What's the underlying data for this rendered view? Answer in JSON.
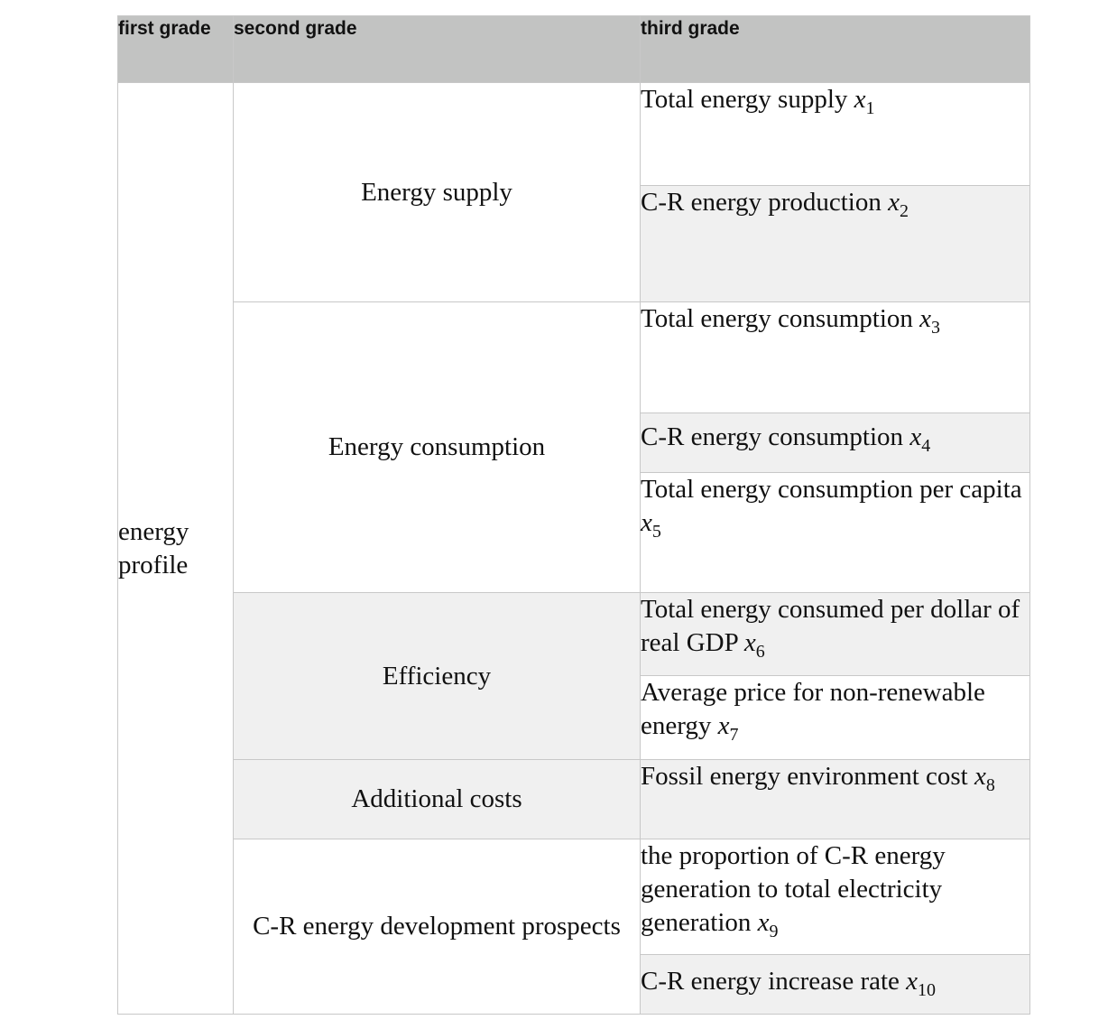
{
  "header": {
    "first": "first grade",
    "second": "second grade",
    "third": "third grade"
  },
  "first_grade": "energy profile",
  "groups": [
    {
      "label": "Energy supply",
      "items": [
        {
          "text": "Total energy supply ",
          "var": "x",
          "sub": "1"
        },
        {
          "text": "C-R energy production ",
          "var": "x",
          "sub": "2"
        }
      ]
    },
    {
      "label": "Energy consumption",
      "items": [
        {
          "text": "Total energy consumption ",
          "var": "x",
          "sub": "3"
        },
        {
          "text": "C-R energy consumption ",
          "var": "x",
          "sub": "4"
        },
        {
          "text": "Total energy consumption per capita ",
          "var": "x",
          "sub": "5"
        }
      ]
    },
    {
      "label": "Efficiency",
      "items": [
        {
          "text": "Total energy consumed per dollar of real GDP ",
          "var": "x",
          "sub": "6"
        },
        {
          "text": "Average price for non-renewable energy ",
          "var": "x",
          "sub": "7"
        }
      ]
    },
    {
      "label": "Additional costs",
      "items": [
        {
          "text": "Fossil energy environment cost ",
          "var": "x",
          "sub": "8"
        }
      ]
    },
    {
      "label": "C-R energy development prospects",
      "items": [
        {
          "text": "the proportion of C-R energy generation to total electricity generation ",
          "var": "x",
          "sub": "9"
        },
        {
          "text": "C-R energy increase rate ",
          "var": "x",
          "sub": "10"
        }
      ]
    }
  ]
}
